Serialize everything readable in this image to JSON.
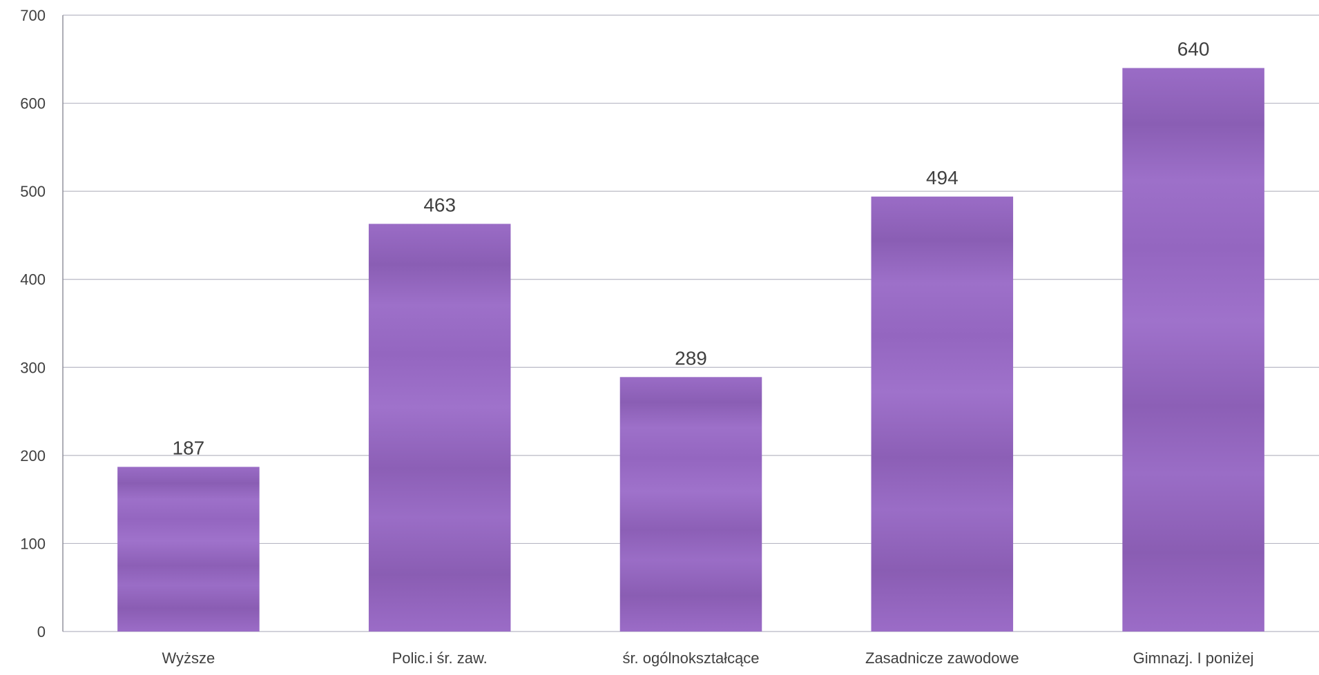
{
  "chart_data": {
    "type": "bar",
    "title": "",
    "xlabel": "",
    "ylabel": "",
    "categories": [
      "Wyższe",
      "Polic.i śr. zaw.",
      "śr. ogólnokształcące",
      "Zasadnicze zawodowe",
      "Gimnazj. I  poniżej"
    ],
    "values": [
      187,
      463,
      289,
      494,
      640
    ],
    "data_labels": [
      "187",
      "463",
      "289",
      "494",
      "640"
    ],
    "ylim": [
      0,
      700
    ],
    "yticks": [
      0,
      100,
      200,
      300,
      400,
      500,
      600,
      700
    ],
    "ytick_labels": [
      "0",
      "100",
      "200",
      "300",
      "400",
      "500",
      "600",
      "700"
    ],
    "grid": true,
    "legend": "none",
    "colors": {
      "bar": "#9b6cc7",
      "bar_dark": "#7e54a6",
      "grid": "#b8b8c4",
      "text": "#404040"
    }
  }
}
